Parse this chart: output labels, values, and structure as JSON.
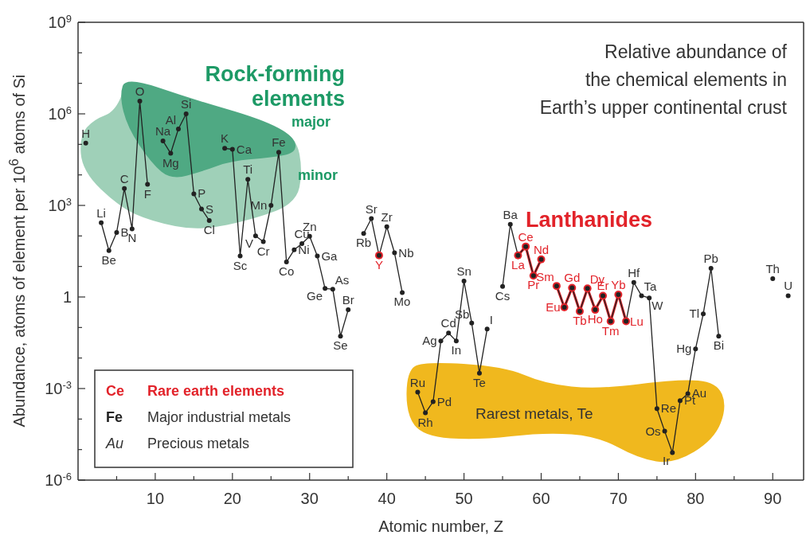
{
  "chart_data": {
    "type": "line",
    "title": "Relative abundance of\nthe chemical elements in\nEarth’s upper continental crust",
    "xlabel": "Atomic number, Z",
    "ylabel": "Abundance, atoms of element per 10$^{6}$ atoms of Si",
    "x": [
      1,
      2,
      3,
      4,
      5,
      6,
      7,
      8,
      9,
      10,
      11,
      12,
      13,
      14,
      15,
      16,
      17,
      18,
      19,
      20,
      21,
      22,
      23,
      24,
      25,
      26,
      27,
      28,
      29,
      30,
      31,
      32,
      33,
      34,
      35,
      36,
      37,
      38,
      39,
      40,
      41,
      42,
      43,
      44,
      45,
      46,
      47,
      48,
      49,
      50,
      51,
      52,
      53,
      54,
      55,
      56,
      57,
      58,
      59,
      60,
      61,
      62,
      63,
      64,
      65,
      66,
      67,
      68,
      69,
      70,
      71,
      72,
      73,
      74,
      75,
      76,
      77,
      78,
      79,
      80,
      81,
      82,
      83,
      84,
      85,
      86,
      87,
      88,
      89,
      90,
      91,
      92
    ],
    "series": [
      {
        "color": "#222222",
        "values": [
          110000,
          null,
          270,
          33,
          130,
          3600,
          170,
          2600000,
          4900,
          null,
          130000,
          51000,
          320000,
          1000000,
          2400,
          760,
          320,
          null,
          74000,
          69000,
          22,
          7100,
          100,
          65,
          1000,
          55000,
          14,
          35,
          56,
          98,
          22,
          1.9,
          1.8,
          0.052,
          0.38,
          null,
          120,
          370,
          23,
          200,
          28,
          1.4,
          null,
          0.00076,
          0.00016,
          0.00037,
          0.036,
          0.066,
          0.036,
          3.3,
          0.14,
          0.0032,
          0.089,
          null,
          2.2,
          240,
          23,
          45,
          5,
          17,
          null,
          2.3,
          0.46,
          2,
          0.34,
          1.9,
          0.38,
          1.1,
          0.16,
          1.2,
          0.16,
          3,
          1.1,
          0.93,
          0.00022,
          4e-05,
          7.9e-06,
          0.0004,
          0.00068,
          0.02,
          0.28,
          8.7,
          0.052,
          null,
          null,
          null,
          null,
          null,
          null,
          4,
          null,
          1.1
        ]
      },
      {
        "color": "#e2232a",
        "values": [
          null,
          null,
          null,
          null,
          null,
          null,
          null,
          null,
          null,
          null,
          null,
          null,
          null,
          null,
          null,
          null,
          null,
          null,
          null,
          null,
          null,
          null,
          null,
          null,
          null,
          null,
          null,
          null,
          null,
          null,
          null,
          null,
          null,
          null,
          null,
          null,
          null,
          null,
          23,
          null,
          null,
          null,
          null,
          null,
          null,
          null,
          null,
          null,
          null,
          null,
          null,
          null,
          null,
          null,
          null,
          null,
          23,
          45,
          5,
          17,
          null,
          2.3,
          0.46,
          2,
          0.34,
          1.9,
          0.38,
          1.1,
          0.16,
          1.2,
          0.16,
          null,
          null,
          null,
          null,
          null,
          null,
          null,
          null,
          null,
          null,
          null,
          null,
          null,
          null,
          null,
          null,
          null,
          null,
          null,
          null,
          null
        ]
      }
    ],
    "xlim": [
      0,
      94
    ],
    "xticks": [
      {
        "value": 5,
        "label": null
      },
      10,
      {
        "value": 15,
        "label": null
      },
      20,
      {
        "value": 25,
        "label": null
      },
      30,
      {
        "value": 35,
        "label": null
      },
      40,
      {
        "value": 45,
        "label": null
      },
      50,
      {
        "value": 55,
        "label": null
      },
      60,
      {
        "value": 65,
        "label": null
      },
      70,
      {
        "value": 75,
        "label": null
      },
      80,
      {
        "value": 85,
        "label": null
      },
      90
    ],
    "ylim": [
      1e-06,
      1000000000
    ],
    "yticks": [
      {
        "value": 1e-06,
        "label": "10$^{-6}$"
      },
      {
        "value": 1e-05,
        "label": null
      },
      {
        "value": 0.0001,
        "label": null
      },
      {
        "value": 0.001,
        "label": "10$^{-3}$"
      },
      {
        "value": 0.01,
        "label": null
      },
      {
        "value": 0.1,
        "label": null
      },
      1,
      {
        "value": 10,
        "label": null
      },
      {
        "value": 100,
        "label": null
      },
      {
        "value": 1000,
        "label": "10$^{3}$"
      },
      {
        "value": 10000,
        "label": null
      },
      {
        "value": 100000,
        "label": null
      },
      {
        "value": 1000000,
        "label": "10$^{6}$"
      },
      {
        "value": 10000000,
        "label": null
      },
      {
        "value": 100000000,
        "label": null
      },
      {
        "value": 1000000000,
        "label": "10$^{9}$"
      }
    ],
    "log": "y",
    "marker": "circle",
    "annotations": [
      "Rock-forming elements",
      "major",
      "minor",
      "Lanthanides",
      "Rarest metals, Te",
      "Ce",
      "Rare earth elements",
      "Fe",
      "Major industrial metals",
      "Au",
      "Precious metals",
      {
        "text": "H",
        "x": 1,
        "y": 110000
      },
      {
        "text": "Li",
        "x": 3,
        "y": 270
      },
      {
        "text": "Be",
        "x": 4,
        "y": 33
      },
      {
        "text": "B",
        "x": 5,
        "y": 130
      },
      {
        "text": "C",
        "x": 6,
        "y": 3600
      },
      {
        "text": "N",
        "x": 7,
        "y": 170
      },
      {
        "text": "O",
        "x": 8,
        "y": 2600000
      },
      {
        "text": "F",
        "x": 9,
        "y": 4900
      },
      {
        "text": "Na",
        "x": 11,
        "y": 130000
      },
      {
        "text": "Mg",
        "x": 12,
        "y": 51000
      },
      {
        "text": "Al",
        "x": 13,
        "y": 320000
      },
      {
        "text": "Si",
        "x": 14,
        "y": 1000000
      },
      {
        "text": "P",
        "x": 15,
        "y": 2400
      },
      {
        "text": "S",
        "x": 16,
        "y": 760
      },
      {
        "text": "Cl",
        "x": 17,
        "y": 320
      },
      {
        "text": "K",
        "x": 19,
        "y": 74000
      },
      {
        "text": "Ca",
        "x": 20,
        "y": 69000
      },
      {
        "text": "Sc",
        "x": 21,
        "y": 22
      },
      {
        "text": "Ti",
        "x": 22,
        "y": 7100
      },
      {
        "text": "V",
        "x": 23,
        "y": 100
      },
      {
        "text": "Cr",
        "x": 24,
        "y": 65
      },
      {
        "text": "Mn",
        "x": 25,
        "y": 1000
      },
      {
        "text": "Fe",
        "x": 26,
        "y": 55000
      },
      {
        "text": "Co",
        "x": 27,
        "y": 14
      },
      {
        "text": "Ni",
        "x": 28,
        "y": 35
      },
      {
        "text": "Cu",
        "x": 29,
        "y": 56
      },
      {
        "text": "Zn",
        "x": 30,
        "y": 98
      },
      {
        "text": "Ga",
        "x": 31,
        "y": 22
      },
      {
        "text": "Ge",
        "x": 32,
        "y": 1.9
      },
      {
        "text": "As",
        "x": 33,
        "y": 1.8
      },
      {
        "text": "Se",
        "x": 34,
        "y": 0.052
      },
      {
        "text": "Br",
        "x": 35,
        "y": 0.38
      },
      {
        "text": "Rb",
        "x": 37,
        "y": 120
      },
      {
        "text": "Sr",
        "x": 38,
        "y": 370
      },
      {
        "text": "Y",
        "x": 39,
        "y": 23
      },
      {
        "text": "Zr",
        "x": 40,
        "y": 200
      },
      {
        "text": "Nb",
        "x": 41,
        "y": 28
      },
      {
        "text": "Mo",
        "x": 42,
        "y": 1.4
      },
      {
        "text": "Ru",
        "x": 44,
        "y": 0.00076
      },
      {
        "text": "Rh",
        "x": 45,
        "y": 0.00016
      },
      {
        "text": "Pd",
        "x": 46,
        "y": 0.00037
      },
      {
        "text": "Ag",
        "x": 47,
        "y": 0.036
      },
      {
        "text": "Cd",
        "x": 48,
        "y": 0.066
      },
      {
        "text": "In",
        "x": 49,
        "y": 0.036
      },
      {
        "text": "Sn",
        "x": 50,
        "y": 3.3
      },
      {
        "text": "Sb",
        "x": 51,
        "y": 0.14
      },
      {
        "text": "Te",
        "x": 52,
        "y": 0.0032
      },
      {
        "text": "I",
        "x": 53,
        "y": 0.089
      },
      {
        "text": "Cs",
        "x": 55,
        "y": 2.2
      },
      {
        "text": "Ba",
        "x": 56,
        "y": 240
      },
      {
        "text": "La",
        "x": 57,
        "y": 23
      },
      {
        "text": "Ce",
        "x": 58,
        "y": 45
      },
      {
        "text": "Pr",
        "x": 59,
        "y": 5
      },
      {
        "text": "Nd",
        "x": 60,
        "y": 17
      },
      {
        "text": "Sm",
        "x": 62,
        "y": 2.3
      },
      {
        "text": "Eu",
        "x": 63,
        "y": 0.46
      },
      {
        "text": "Gd",
        "x": 64,
        "y": 2
      },
      {
        "text": "Tb",
        "x": 65,
        "y": 0.34
      },
      {
        "text": "Dy",
        "x": 66,
        "y": 1.9
      },
      {
        "text": "Ho",
        "x": 67,
        "y": 0.38
      },
      {
        "text": "Er",
        "x": 68,
        "y": 1.1
      },
      {
        "text": "Tm",
        "x": 69,
        "y": 0.16
      },
      {
        "text": "Yb",
        "x": 70,
        "y": 1.2
      },
      {
        "text": "Lu",
        "x": 71,
        "y": 0.16
      },
      {
        "text": "Hf",
        "x": 72,
        "y": 3
      },
      {
        "text": "Ta",
        "x": 73,
        "y": 1.1
      },
      {
        "text": "W",
        "x": 74,
        "y": 0.93
      },
      {
        "text": "Re",
        "x": 75,
        "y": 0.00022
      },
      {
        "text": "Os",
        "x": 76,
        "y": 4e-05
      },
      {
        "text": "Ir",
        "x": 77,
        "y": 7.9e-06
      },
      {
        "text": "Pt",
        "x": 78,
        "y": 0.0004
      },
      {
        "text": "Au",
        "x": 79,
        "y": 0.00068
      },
      {
        "text": "Hg",
        "x": 80,
        "y": 0.02
      },
      {
        "text": "Tl",
        "x": 81,
        "y": 0.28
      },
      {
        "text": "Pb",
        "x": 82,
        "y": 8.7
      },
      {
        "text": "Bi",
        "x": 83,
        "y": 0.052
      },
      {
        "text": "Th",
        "x": 90,
        "y": 4
      },
      {
        "text": "U",
        "x": 92,
        "y": 1.1
      }
    ]
  }
}
